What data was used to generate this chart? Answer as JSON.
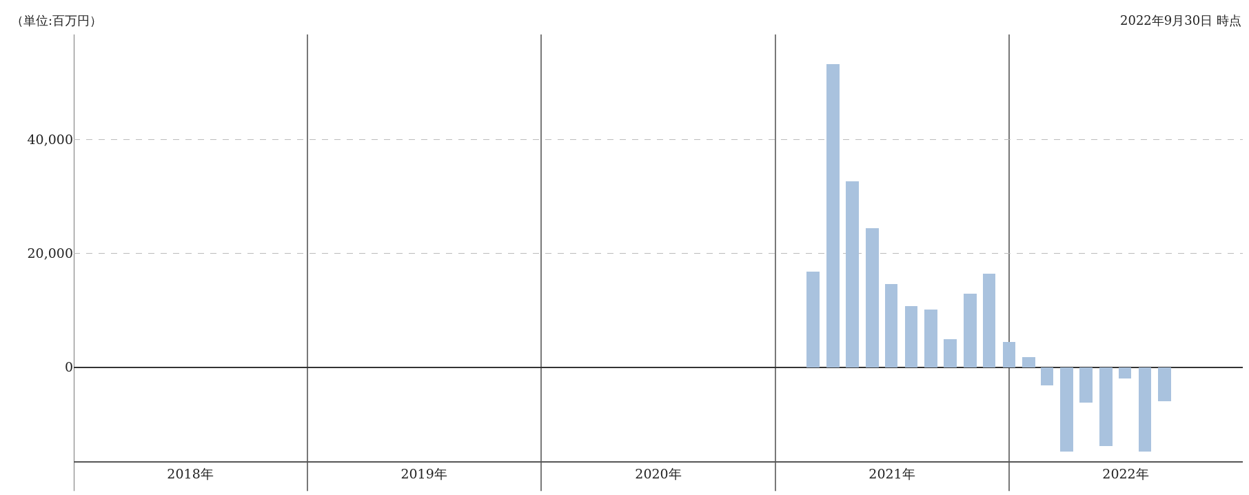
{
  "chart_data": {
    "type": "bar",
    "annotations": [
      "（単位:百万円）",
      "2022年9月30日 時点"
    ],
    "x": [
      "2021-03",
      "2021-04",
      "2021-05",
      "2021-06",
      "2021-07",
      "2021-08",
      "2021-09",
      "2021-10",
      "2021-11",
      "2021-12",
      "2022-01",
      "2022-02",
      "2022-03",
      "2022-04",
      "2022-05",
      "2022-06",
      "2022-07",
      "2022-08",
      "2022-09"
    ],
    "values": [
      16800,
      53300,
      32700,
      24500,
      14700,
      10800,
      10100,
      4900,
      13000,
      16500,
      4500,
      1800,
      -3200,
      -14800,
      -6200,
      -13800,
      -2000,
      -14800,
      -5900
    ],
    "color": "#a9c2de",
    "xlim": [
      "2018-01-01",
      "2023-01-01"
    ],
    "xticks": [
      {
        "value": "2018-01-01",
        "label": null
      },
      {
        "value": "2018-07-02",
        "label": "2018年"
      },
      {
        "value": "2019-01-01",
        "label": null
      },
      {
        "value": "2019-07-02",
        "label": "2019年"
      },
      {
        "value": "2020-01-01",
        "label": null
      },
      {
        "value": "2020-07-02",
        "label": "2020年"
      },
      {
        "value": "2021-01-01",
        "label": null
      },
      {
        "value": "2021-07-02",
        "label": "2021年"
      },
      {
        "value": "2022-01-01",
        "label": null
      },
      {
        "value": "2022-07-02",
        "label": "2022年"
      }
    ],
    "ylim": [
      -16500,
      58500
    ],
    "yticks": [
      {
        "value": 0,
        "label": "0"
      },
      {
        "value": 20000,
        "label": "20,000"
      },
      {
        "value": 40000,
        "label": "40,000"
      }
    ],
    "grid": true
  }
}
